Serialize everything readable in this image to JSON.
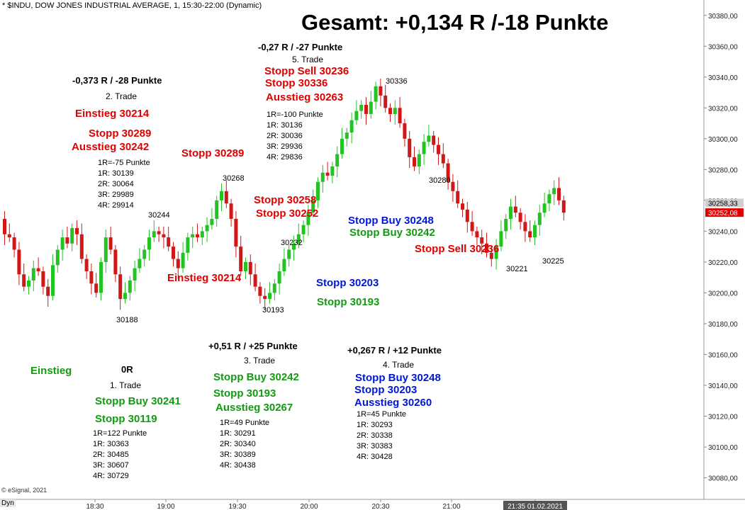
{
  "header": {
    "title": "* $INDU, DOW JONES INDUSTRIAL AVERAGE, 1, 15:30-22:00 (Dynamic)",
    "summary": "Gesamt: +0,134 R /-18 Punkte",
    "copyright": "© eSignal, 2021",
    "mode_label": "Dyn"
  },
  "colors": {
    "red": "#e00000",
    "green": "#139a13",
    "blue": "#0018d6",
    "up_candle": "#22c322",
    "down_candle": "#d01818"
  },
  "chart_data": {
    "type": "candlestick",
    "x_ticks": [
      "18:30",
      "19:00",
      "19:30",
      "20:00",
      "20:30",
      "21:00",
      "21:35 01.02.2021"
    ],
    "y_ticks": [
      "30080,00",
      "30100,00",
      "30120,00",
      "30140,00",
      "30160,00",
      "30180,00",
      "30200,00",
      "30220,00",
      "30240,00",
      "30260,00",
      "30280,00",
      "30300,00",
      "30320,00",
      "30340,00",
      "30360,00",
      "30380,00"
    ],
    "ylim": [
      30066,
      30390
    ],
    "price_labels": [
      {
        "text": "30258,33",
        "value": 30258.33,
        "style": "gray"
      },
      {
        "text": "30252,08",
        "value": 30252.08,
        "style": "red"
      }
    ],
    "close_path": [
      30248,
      30238,
      30236,
      30228,
      30212,
      30204,
      30208,
      30216,
      30214,
      30204,
      30198,
      30218,
      30228,
      30236,
      30232,
      30242,
      30238,
      30222,
      30214,
      30206,
      30200,
      30220,
      30236,
      30228,
      30212,
      30196,
      30200,
      30208,
      30216,
      30222,
      30228,
      30236,
      30240,
      30238,
      30236,
      30230,
      30222,
      30216,
      30226,
      30236,
      30238,
      30236,
      30240,
      30244,
      30248,
      30260,
      30266,
      30258,
      30248,
      30230,
      30214,
      30220,
      30212,
      30204,
      30198,
      30196,
      30200,
      30206,
      30214,
      30222,
      30228,
      30232,
      30238,
      30244,
      30252,
      30260,
      30272,
      30278,
      30276,
      30282,
      30290,
      30300,
      30304,
      30312,
      30318,
      30322,
      30316,
      30324,
      30334,
      30328,
      30320,
      30316,
      30320,
      30310,
      30300,
      30288,
      30282,
      30290,
      30298,
      30302,
      30296,
      30290,
      30284,
      30272,
      30266,
      30258,
      30254,
      30246,
      30240,
      30236,
      30232,
      30226,
      30222,
      30230,
      30240,
      30248,
      30256,
      30252,
      30246,
      30240,
      30236,
      30244,
      30252,
      30258,
      30264,
      30268,
      30260,
      30252
    ],
    "point_labels": [
      {
        "text": "30188",
        "value": 30188
      },
      {
        "text": "30244",
        "value": 30244
      },
      {
        "text": "30268",
        "value": 30268
      },
      {
        "text": "30232",
        "value": 30232
      },
      {
        "text": "30193",
        "value": 30193
      },
      {
        "text": "30336",
        "value": 30336
      },
      {
        "text": "30280",
        "value": 30280
      },
      {
        "text": "30221",
        "value": 30221
      },
      {
        "text": "30225",
        "value": 30225
      }
    ]
  },
  "trades": {
    "t1": {
      "einstieg": "Einstieg",
      "result": "0R",
      "name": "1. Trade",
      "l1": "Stopp Buy 30241",
      "l2": "Stopp 30119",
      "r": [
        "1R=122 Punkte",
        "1R: 30363",
        "2R: 30485",
        "3R: 30607",
        "4R: 30729"
      ]
    },
    "t2": {
      "result": "-0,373 R / -28 Punkte",
      "name": "2. Trade",
      "l1": "Einstieg 30214",
      "l2": "Stopp 30289",
      "l3": "Ausstieg 30242",
      "r": [
        "1R=-75 Punkte",
        "1R: 30139",
        "2R: 30064",
        "3R: 29989",
        "4R: 29914"
      ],
      "stopp_chart": "Stopp 30289",
      "einstieg_chart": "Einstieg 30214"
    },
    "t3": {
      "result": "+0,51 R / +25 Punkte",
      "name": "3. Trade",
      "l1": "Stopp Buy 30242",
      "l2": "Stopp 30193",
      "l3": "Ausstieg 30267",
      "r": [
        "1R=49 Punkte",
        "1R: 30291",
        "2R: 30340",
        "3R: 30389",
        "4R: 30438"
      ],
      "chart_a": "Stopp 30258",
      "chart_b": "Stopp 30252",
      "chart_c": "Stopp Buy 30242",
      "chart_d": "Stopp 30193"
    },
    "t4": {
      "result": "+0,267 R / +12 Punkte",
      "name": "4. Trade",
      "l1": "Stopp Buy 30248",
      "l2": "Stopp 30203",
      "l3": "Ausstieg 30260",
      "r": [
        "1R=45 Punkte",
        "1R: 30293",
        "2R: 30338",
        "3R: 30383",
        "4R: 30428"
      ],
      "chart_a": "Stopp Buy 30248",
      "chart_b": "Stopp 30203"
    },
    "t5": {
      "result": "-0,27 R / -27 Punkte",
      "name": "5. Trade",
      "l1": "Stopp Sell 30236",
      "l2": "Stopp 30336",
      "l3": "Ausstieg 30263",
      "r": [
        "1R=-100 Punkte",
        "1R: 30136",
        "2R: 30036",
        "3R: 29936",
        "4R: 29836"
      ],
      "chart_a": "Stopp Sell 30236"
    }
  }
}
